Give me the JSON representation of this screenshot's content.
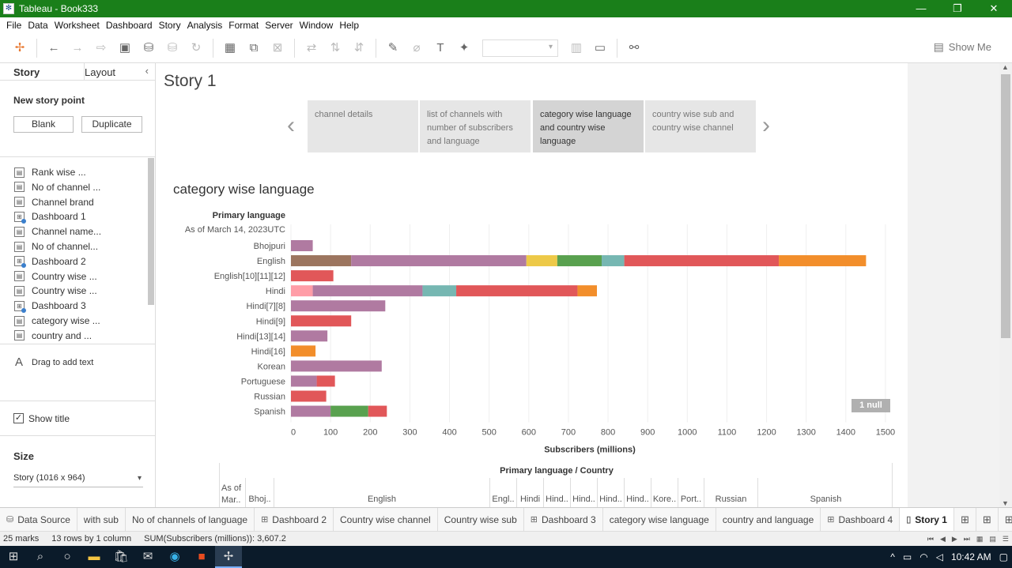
{
  "window": {
    "title": "Tableau - Book333",
    "controls": [
      "—",
      "❐",
      "✕"
    ]
  },
  "menu": [
    "File",
    "Data",
    "Worksheet",
    "Dashboard",
    "Story",
    "Analysis",
    "Format",
    "Server",
    "Window",
    "Help"
  ],
  "toolbar": {
    "show_me": "Show Me"
  },
  "left_panel": {
    "tab_story": "Story",
    "tab_layout": "Layout",
    "new_story_point": "New story point",
    "blank": "Blank",
    "duplicate": "Duplicate",
    "sheets": [
      {
        "label": "Rank wise ...",
        "kind": "sheet"
      },
      {
        "label": "No of channel ...",
        "kind": "sheet"
      },
      {
        "label": " Channel brand",
        "kind": "sheet"
      },
      {
        "label": "Dashboard 1",
        "kind": "dashboard"
      },
      {
        "label": "Channel name...",
        "kind": "sheet"
      },
      {
        "label": "No of channel...",
        "kind": "sheet"
      },
      {
        "label": "Dashboard 2",
        "kind": "dashboard"
      },
      {
        "label": "Country wise ...",
        "kind": "sheet"
      },
      {
        "label": "Country wise ...",
        "kind": "sheet"
      },
      {
        "label": "Dashboard 3",
        "kind": "dashboard"
      },
      {
        "label": "category wise ...",
        "kind": "sheet"
      },
      {
        "label": "country and ...",
        "kind": "sheet"
      }
    ],
    "drag_to_add_text": "Drag to add text",
    "show_title": "Show title",
    "size_heading": "Size",
    "size_value": "Story (1016 x 964)"
  },
  "story": {
    "title": "Story 1",
    "points": [
      {
        "label": "channel details",
        "active": false
      },
      {
        "label": "list of channels with number of subscribers and language",
        "active": false
      },
      {
        "label": "category wise language and country wise language",
        "active": true
      },
      {
        "label": "country wise sub and country wise channel",
        "active": false
      }
    ]
  },
  "chart_title": "category wise  language",
  "column_header": "Primary language",
  "as_of": "As of March 14, 2023UTC",
  "null_badge": "1 null",
  "palette": {
    "purple": "#b07aa1",
    "brown": "#9c755f",
    "yellow": "#edc948",
    "green": "#59a14f",
    "teal": "#76b7b2",
    "red": "#e15759",
    "orange": "#f28e2b",
    "pink": "#ff9da7"
  },
  "chart_data": {
    "type": "bar",
    "orientation": "horizontal",
    "stacked": true,
    "xlabel": "Subscribers (millions)",
    "xlim": [
      0,
      1500
    ],
    "xticks": [
      0,
      100,
      200,
      300,
      400,
      500,
      600,
      700,
      800,
      900,
      1000,
      1100,
      1200,
      1300,
      1400,
      1500
    ],
    "grid": "vertical",
    "categories": [
      "Bhojpuri",
      "English",
      "English[10][11][12]",
      "Hindi",
      "Hindi[7][8]",
      "Hindi[9]",
      "Hindi[13][14]",
      "Hindi[16]",
      "Korean",
      "Portuguese",
      "Russian",
      "Spanish"
    ],
    "segments": [
      [
        {
          "v": 55,
          "c": "purple"
        }
      ],
      [
        {
          "v": 152,
          "c": "brown"
        },
        {
          "v": 442,
          "c": "purple"
        },
        {
          "v": 78,
          "c": "yellow"
        },
        {
          "v": 112,
          "c": "green"
        },
        {
          "v": 57,
          "c": "teal"
        },
        {
          "v": 390,
          "c": "red"
        },
        {
          "v": 220,
          "c": "orange"
        }
      ],
      [
        {
          "v": 107,
          "c": "red"
        }
      ],
      [
        {
          "v": 55,
          "c": "pink"
        },
        {
          "v": 277,
          "c": "purple"
        },
        {
          "v": 85,
          "c": "teal"
        },
        {
          "v": 306,
          "c": "red"
        },
        {
          "v": 49,
          "c": "orange"
        }
      ],
      [
        {
          "v": 238,
          "c": "purple"
        }
      ],
      [
        {
          "v": 152,
          "c": "red"
        }
      ],
      [
        {
          "v": 92,
          "c": "purple"
        }
      ],
      [
        {
          "v": 62,
          "c": "orange"
        }
      ],
      [
        {
          "v": 229,
          "c": "purple"
        }
      ],
      [
        {
          "v": 65,
          "c": "purple"
        },
        {
          "v": 46,
          "c": "red"
        }
      ],
      [
        {
          "v": 89,
          "c": "red"
        }
      ],
      [
        {
          "v": 100,
          "c": "purple"
        },
        {
          "v": 95,
          "c": "green"
        },
        {
          "v": 47,
          "c": "red"
        }
      ]
    ]
  },
  "bottom_view": {
    "header": "Primary language / Country",
    "as_of_short": "As of Mar..",
    "columns": [
      "Bhoj..",
      "English",
      "Engl..",
      "Hindi",
      "Hind..",
      "Hind..",
      "Hind..",
      "Hind..",
      "Kore..",
      "Port..",
      "Russian",
      "Spanish"
    ]
  },
  "sheet_tabs": [
    {
      "label": "Data Source",
      "icon": "database-icon",
      "active": false
    },
    {
      "label": "with sub",
      "icon": "",
      "active": false
    },
    {
      "label": "No of channels of language",
      "icon": "",
      "active": false
    },
    {
      "label": "Dashboard 2",
      "icon": "dashboard-icon",
      "active": false
    },
    {
      "label": "Country wise channel",
      "icon": "",
      "active": false
    },
    {
      "label": "Country wise sub",
      "icon": "",
      "active": false
    },
    {
      "label": "Dashboard 3",
      "icon": "dashboard-icon",
      "active": false
    },
    {
      "label": "category wise language",
      "icon": "",
      "active": false
    },
    {
      "label": "country and language",
      "icon": "",
      "active": false
    },
    {
      "label": "Dashboard 4",
      "icon": "dashboard-icon",
      "active": false
    },
    {
      "label": "Story 1",
      "icon": "story-icon",
      "active": true
    }
  ],
  "status": {
    "marks": "25 marks",
    "rows": "13 rows by 1 column",
    "sum": "SUM(Subscribers (millions)): 3,607.2"
  },
  "taskbar": {
    "time": "10:42 AM"
  }
}
